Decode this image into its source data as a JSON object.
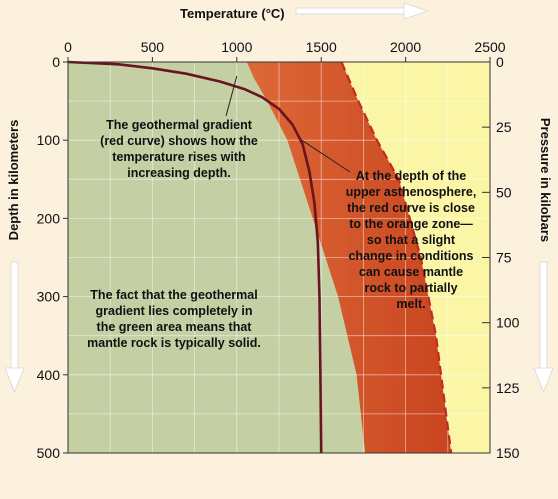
{
  "chart_data": {
    "type": "area",
    "top_axis": {
      "title": "Temperature (°C)",
      "range": [
        0,
        2500
      ],
      "ticks": [
        0,
        500,
        1000,
        1500,
        2000,
        2500
      ]
    },
    "left_axis": {
      "title": "Depth in kilometers",
      "range": [
        0,
        500
      ],
      "ticks": [
        0,
        100,
        200,
        300,
        400,
        500
      ],
      "inverted": true
    },
    "right_axis": {
      "title": "Pressure in kilobars",
      "range": [
        0,
        150
      ],
      "ticks": [
        25,
        50,
        75,
        100,
        125,
        150
      ],
      "inverted": true
    },
    "grid": true,
    "regions": [
      {
        "id": "green",
        "meaning": "mantle rock solid",
        "color": "#c4cfa4"
      },
      {
        "id": "orange",
        "meaning": "partial melting zone",
        "color": "#dd6a38"
      },
      {
        "id": "yellow",
        "meaning": "molten",
        "color": "#fbf5a6"
      }
    ],
    "series": [
      {
        "role": "geothermal-gradient",
        "color": "#6b1420",
        "x": [
          0,
          300,
          500,
          700,
          900,
          1050,
          1150,
          1250,
          1330,
          1390,
          1430,
          1460,
          1480,
          1490,
          1495,
          1500
        ],
        "y": [
          0,
          3,
          8,
          15,
          25,
          35,
          45,
          60,
          80,
          105,
          140,
          180,
          230,
          300,
          400,
          500
        ]
      },
      {
        "role": "orange-zone-lower-boundary",
        "style": "solid",
        "x": [
          1060,
          1100,
          1180,
          1300,
          1450,
          1600,
          1710,
          1760
        ],
        "y": [
          0,
          20,
          50,
          100,
          200,
          300,
          400,
          500
        ]
      },
      {
        "role": "orange-zone-upper-boundary",
        "style": "dashed",
        "color": "#c42a24",
        "x": [
          1620,
          1660,
          1720,
          1830,
          1960,
          2090,
          2180,
          2240,
          2270
        ],
        "y": [
          0,
          20,
          50,
          100,
          150,
          250,
          350,
          450,
          500
        ]
      }
    ],
    "annotations": [
      {
        "id": "gradient-note",
        "text": "The geothermal gradient\n(red curve) shows how the\ntemperature rises with\nincreasing depth."
      },
      {
        "id": "asthenosphere-note",
        "text": "At the depth of the\nupper asthenosphere,\nthe red curve is close\nto the orange zone—\nso that a slight\nchange in conditions\ncan cause mantle\nrock to partially\nmelt."
      },
      {
        "id": "solid-note",
        "text": "The fact that the geothermal\ngradient lies completely in\nthe green area means that\nmantle rock is typically solid."
      }
    ],
    "leaders": [
      {
        "from_annotation": "gradient-note",
        "to_point": [
          1000,
          18
        ]
      },
      {
        "from_annotation": "asthenosphere-note",
        "to_point": [
          1385,
          100
        ]
      }
    ]
  }
}
